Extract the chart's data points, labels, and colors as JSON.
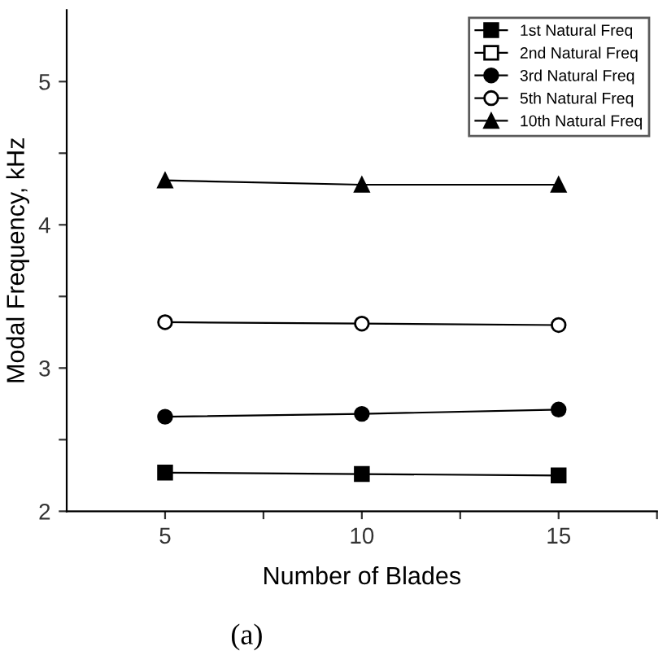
{
  "chart_data": {
    "type": "line",
    "xlabel": "Number of Blades",
    "ylabel": "Modal Frequency, kHz",
    "x": [
      5,
      10,
      15
    ],
    "xlim": [
      2.5,
      17.5
    ],
    "xticks": [
      5,
      {
        "value": 7.5,
        "label": null
      },
      10,
      {
        "value": 12.5,
        "label": null
      },
      15,
      {
        "value": 17.5,
        "label": null
      }
    ],
    "ylim": [
      2,
      5.5
    ],
    "yticks": [
      2,
      {
        "value": 2.5,
        "label": null
      },
      3,
      {
        "value": 3.5,
        "label": null
      },
      4,
      {
        "value": 4.5,
        "label": null
      },
      5
    ],
    "grid": false,
    "legend": "top right",
    "line_style": "solid",
    "series": [
      {
        "name": "1st Natural Freq",
        "color": "#000000",
        "marker": "square",
        "values": [
          2.27,
          2.26,
          2.25
        ]
      },
      {
        "name": "2nd Natural Freq",
        "color": "#000000",
        "marker": "square",
        "values": [
          null,
          null,
          null
        ]
      },
      {
        "name": "3rd Natural Freq",
        "color": "#000000",
        "marker": "circle",
        "values": [
          2.66,
          2.68,
          2.71
        ]
      },
      {
        "name": "5th Natural Freq",
        "color": "#000000",
        "marker": "circle",
        "values": [
          3.32,
          3.31,
          3.3
        ]
      },
      {
        "name": "10th Natural Freq",
        "color": "#000000",
        "marker": "triangle",
        "values": [
          4.31,
          4.28,
          4.28
        ]
      }
    ],
    "annotations": [
      "(a)"
    ]
  }
}
